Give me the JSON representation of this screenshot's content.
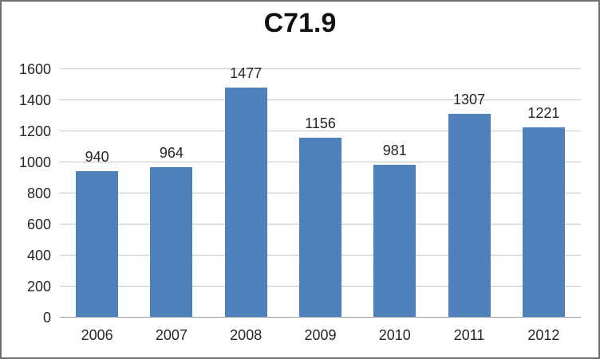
{
  "chart_data": {
    "type": "bar",
    "title": "C71.9",
    "categories": [
      "2006",
      "2007",
      "2008",
      "2009",
      "2010",
      "2011",
      "2012"
    ],
    "values": [
      940,
      964,
      1477,
      1156,
      981,
      1307,
      1221
    ],
    "series_name": "",
    "xlabel": "",
    "ylabel": "",
    "ylim": [
      0,
      1600
    ],
    "yticks": [
      0,
      200,
      400,
      600,
      800,
      1000,
      1200,
      1400,
      1600
    ],
    "grid": true,
    "legend": false,
    "data_labels": true,
    "colors": {
      "bar": "#4f81bd",
      "gridline": "#c6c6c6",
      "axis_line": "#9e9e9e",
      "text": "#262626",
      "title_text": "#111111",
      "frame_border": "#6e6e6e",
      "background": "#ffffff"
    }
  }
}
